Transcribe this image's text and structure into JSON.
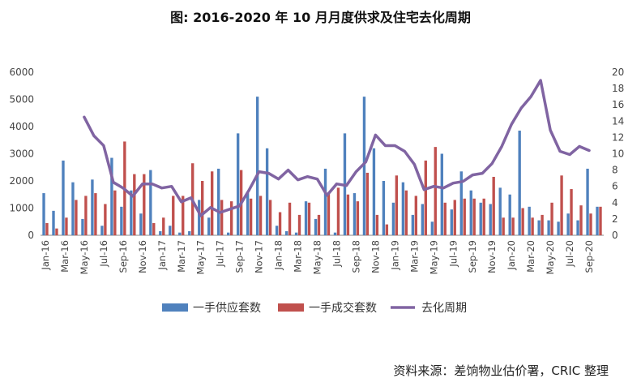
{
  "chart_data": {
    "type": "bar+line",
    "title": "图: 2016-2020 年 10 月月度供求及住宅去化周期",
    "source": "资料来源：差饷物业估价署，CRIC 整理",
    "categories": [
      "Jan-16",
      "Feb-16",
      "Mar-16",
      "Apr-16",
      "May-16",
      "Jun-16",
      "Jul-16",
      "Aug-16",
      "Sep-16",
      "Oct-16",
      "Nov-16",
      "Dec-16",
      "Jan-17",
      "Feb-17",
      "Mar-17",
      "Apr-17",
      "May-17",
      "Jun-17",
      "Jul-17",
      "Aug-17",
      "Sep-17",
      "Oct-17",
      "Nov-17",
      "Dec-17",
      "Jan-18",
      "Feb-18",
      "Mar-18",
      "Apr-18",
      "May-18",
      "Jun-18",
      "Jul-18",
      "Aug-18",
      "Sep-18",
      "Oct-18",
      "Nov-18",
      "Dec-18",
      "Jan-19",
      "Feb-19",
      "Mar-19",
      "Apr-19",
      "May-19",
      "Jun-19",
      "Jul-19",
      "Aug-19",
      "Sep-19",
      "Oct-19",
      "Nov-19",
      "Dec-19",
      "Jan-20",
      "Feb-20",
      "Mar-20",
      "Apr-20",
      "May-20",
      "Jun-20",
      "Jul-20",
      "Aug-20",
      "Sep-20",
      "Oct-20"
    ],
    "x_tick_labels": [
      "Jan-16",
      "Mar-16",
      "May-16",
      "Jul-16",
      "Sep-16",
      "Nov-16",
      "Jan-17",
      "Mar-17",
      "May-17",
      "Jul-17",
      "Sep-17",
      "Nov-17",
      "Jan-18",
      "Mar-18",
      "May-18",
      "Jul-18",
      "Sep-18",
      "Nov-18",
      "Jan-19",
      "Mar-19",
      "May-19",
      "Jul-19",
      "Sep-19",
      "Nov-19",
      "Jan-20",
      "Mar-20",
      "May-20",
      "Jul-20",
      "Sep-20"
    ],
    "y_left": {
      "lim": [
        0,
        6000
      ],
      "ticks": [
        "0",
        "1000",
        "2000",
        "3000",
        "4000",
        "5000",
        "6000"
      ]
    },
    "y_right": {
      "lim": [
        0,
        20
      ],
      "ticks": [
        "0",
        "2",
        "4",
        "6",
        "8",
        "10",
        "12",
        "14",
        "16",
        "18",
        "20"
      ]
    },
    "series": [
      {
        "name": "一手供应套数",
        "kind": "bar",
        "axis": "left",
        "color": "#4f81bd",
        "values": [
          1550,
          900,
          2750,
          1950,
          600,
          2050,
          350,
          2850,
          1050,
          1650,
          800,
          2400,
          150,
          350,
          100,
          150,
          1300,
          650,
          2450,
          100,
          3750,
          1550,
          5100,
          3200,
          350,
          150,
          100,
          1250,
          600,
          2450,
          100,
          3750,
          1550,
          5100,
          3200,
          2000,
          1200,
          1950,
          750,
          1150,
          500,
          3000,
          950,
          2350,
          1650,
          1200,
          1150,
          1750,
          1500,
          3850,
          1050,
          550,
          550,
          500,
          800,
          550,
          2450,
          1050
        ]
      },
      {
        "name": "一手成交套数",
        "kind": "bar",
        "axis": "left",
        "color": "#c0504d",
        "values": [
          450,
          250,
          650,
          1300,
          1450,
          1550,
          1150,
          1650,
          3450,
          2250,
          2250,
          450,
          650,
          1450,
          1450,
          2650,
          2000,
          2350,
          1300,
          1250,
          2400,
          1350,
          1450,
          1300,
          850,
          1200,
          750,
          1200,
          750,
          1550,
          1750,
          1500,
          1250,
          2300,
          750,
          400,
          2200,
          1650,
          1450,
          2750,
          3250,
          1200,
          1300,
          1350,
          1350,
          1350,
          2150,
          650,
          650,
          1000,
          650,
          750,
          1200,
          2200,
          1700,
          1100,
          800,
          1050
        ]
      },
      {
        "name": "去化周期",
        "kind": "line",
        "axis": "right",
        "color": "#8064a2",
        "values": [
          null,
          null,
          null,
          null,
          14.5,
          12.2,
          11.0,
          6.5,
          5.8,
          4.8,
          6.3,
          6.3,
          5.8,
          6.0,
          4.1,
          4.6,
          2.4,
          3.4,
          2.8,
          3.2,
          3.6,
          5.6,
          7.8,
          7.6,
          6.9,
          8.0,
          6.8,
          7.2,
          6.9,
          4.9,
          6.3,
          6.1,
          7.8,
          9.0,
          12.3,
          11.0,
          11.0,
          10.3,
          8.7,
          5.6,
          6.0,
          5.8,
          6.4,
          6.6,
          7.4,
          7.6,
          8.8,
          10.9,
          13.6,
          15.6,
          17.0,
          19.0,
          12.9,
          10.3,
          9.9,
          10.9,
          10.4,
          null
        ]
      }
    ]
  }
}
